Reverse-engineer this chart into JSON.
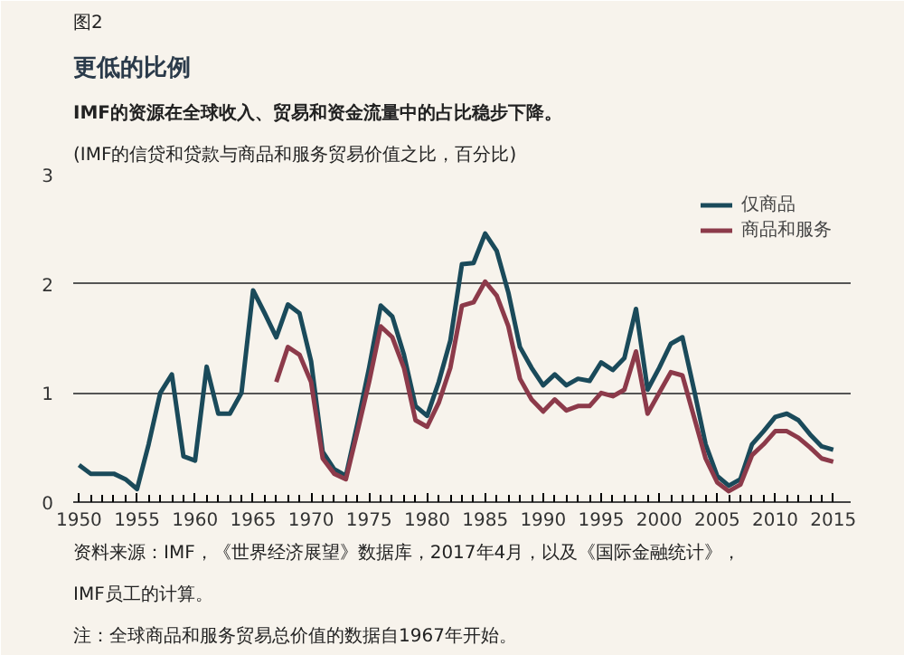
{
  "chart_data": {
    "type": "line",
    "title": "更低的比例",
    "subtitle": "IMF的资源在全球收入、贸易和资金流量中的占比稳步下降。",
    "ylabel": "(IMF的信贷和贷款与商品和服务贸易价值之比，百分比)",
    "annotations": [
      "图2",
      "资料来源：IMF，《世界经济展望》数据库，2017年4月，以及《国际金融统计》，IMF员工的计算。",
      "注：全球商品和服务贸易总价值的数据自1967年开始。"
    ],
    "x": [
      1950,
      1951,
      1952,
      1953,
      1954,
      1955,
      1956,
      1957,
      1958,
      1959,
      1960,
      1961,
      1962,
      1963,
      1964,
      1965,
      1966,
      1967,
      1968,
      1969,
      1970,
      1971,
      1972,
      1973,
      1974,
      1975,
      1976,
      1977,
      1978,
      1979,
      1980,
      1981,
      1982,
      1983,
      1984,
      1985,
      1986,
      1987,
      1988,
      1989,
      1990,
      1991,
      1992,
      1993,
      1994,
      1995,
      1996,
      1997,
      1998,
      1999,
      2000,
      2001,
      2002,
      2003,
      2004,
      2005,
      2006,
      2007,
      2008,
      2009,
      2010,
      2011,
      2012,
      2013,
      2014,
      2015
    ],
    "series": [
      {
        "name": "仅商品",
        "color": "#1a4a5a",
        "values": [
          0.34,
          0.26,
          0.26,
          0.26,
          0.21,
          0.12,
          0.53,
          1.0,
          1.17,
          0.42,
          0.38,
          1.24,
          0.81,
          0.81,
          1.0,
          1.94,
          1.73,
          1.51,
          1.81,
          1.73,
          1.29,
          0.46,
          0.3,
          0.24,
          0.72,
          1.23,
          1.8,
          1.7,
          1.35,
          0.88,
          0.79,
          1.1,
          1.48,
          2.18,
          2.19,
          2.46,
          2.3,
          1.92,
          1.42,
          1.23,
          1.07,
          1.17,
          1.07,
          1.13,
          1.11,
          1.28,
          1.21,
          1.32,
          1.77,
          1.03,
          1.23,
          1.45,
          1.51,
          1.03,
          0.53,
          0.24,
          0.15,
          0.21,
          0.53,
          0.65,
          0.78,
          0.81,
          0.75,
          0.62,
          0.51,
          0.48
        ]
      },
      {
        "name": "商品和服务",
        "color": "#8c3a4a",
        "values": [
          null,
          null,
          null,
          null,
          null,
          null,
          null,
          null,
          null,
          null,
          null,
          null,
          null,
          null,
          null,
          null,
          null,
          1.1,
          1.42,
          1.35,
          1.1,
          0.4,
          0.26,
          0.21,
          0.65,
          1.1,
          1.61,
          1.51,
          1.23,
          0.75,
          0.69,
          0.91,
          1.23,
          1.8,
          1.83,
          2.02,
          1.89,
          1.61,
          1.13,
          0.94,
          0.83,
          0.94,
          0.84,
          0.88,
          0.88,
          1.0,
          0.97,
          1.03,
          1.38,
          0.81,
          1.0,
          1.19,
          1.16,
          0.78,
          0.4,
          0.18,
          0.1,
          0.16,
          0.43,
          0.53,
          0.65,
          0.65,
          0.59,
          0.5,
          0.4,
          0.37
        ]
      }
    ],
    "xlim": [
      1949.5,
      2016.5
    ],
    "xticks": [
      1950,
      1955,
      1960,
      1965,
      1970,
      1975,
      1980,
      1985,
      1990,
      1995,
      2000,
      2005,
      2010,
      2015
    ],
    "ylim": [
      0,
      3
    ],
    "yticks": [
      0,
      1,
      2,
      3
    ],
    "grid": "y",
    "legend": "top right"
  }
}
